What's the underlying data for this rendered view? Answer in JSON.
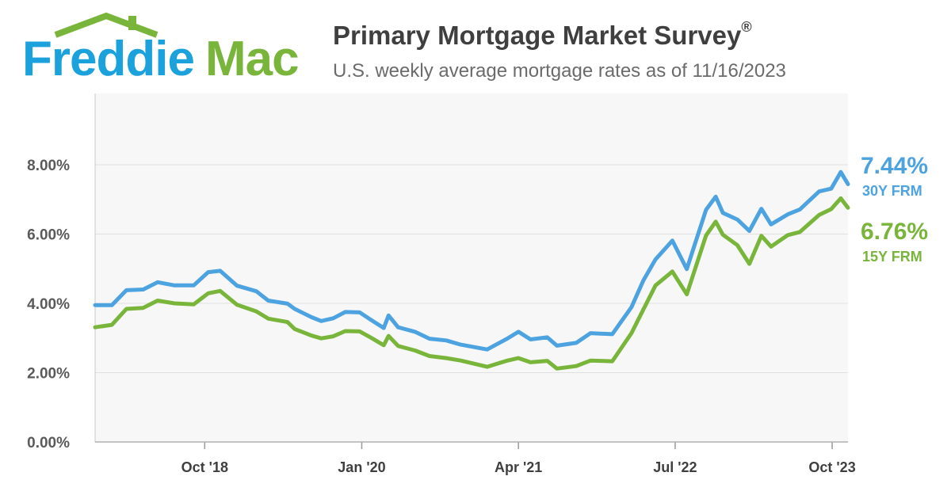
{
  "brand": {
    "part1": "Freddie",
    "part2": "Mac"
  },
  "header": {
    "title": "Primary Mortgage Market Survey",
    "title_mark": "®",
    "subtitle": "U.S. weekly average mortgage rates as of 11/16/2023"
  },
  "colors": {
    "frm30": "#4da3e0",
    "frm15": "#7ab53b",
    "brand_blue": "#1ba1dc",
    "brand_green": "#7ab53b"
  },
  "chart_data": {
    "type": "line",
    "ylim": [
      0,
      8
    ],
    "y_ticks": [
      {
        "value": 0,
        "label": "0.00%"
      },
      {
        "value": 2,
        "label": "2.00%"
      },
      {
        "value": 4,
        "label": "4.00%"
      },
      {
        "value": 6,
        "label": "6.00%"
      },
      {
        "value": 8,
        "label": "8.00%"
      }
    ],
    "x_range": [
      "2017-11-16",
      "2023-11-16"
    ],
    "x_ticks": [
      {
        "date": "2018-10-01",
        "label": "Oct '18"
      },
      {
        "date": "2020-01-01",
        "label": "Jan '20"
      },
      {
        "date": "2021-04-01",
        "label": "Apr '21"
      },
      {
        "date": "2022-07-01",
        "label": "Jul '22"
      },
      {
        "date": "2023-10-01",
        "label": "Oct '23"
      }
    ],
    "series": [
      {
        "name": "30Y FRM",
        "last_value": "7.44%",
        "points": [
          [
            "2017-11-16",
            3.95
          ],
          [
            "2018-01-04",
            3.95
          ],
          [
            "2018-02-15",
            4.38
          ],
          [
            "2018-04-05",
            4.4
          ],
          [
            "2018-05-17",
            4.61
          ],
          [
            "2018-07-05",
            4.52
          ],
          [
            "2018-08-30",
            4.52
          ],
          [
            "2018-10-11",
            4.9
          ],
          [
            "2018-11-15",
            4.94
          ],
          [
            "2019-01-03",
            4.51
          ],
          [
            "2019-02-28",
            4.35
          ],
          [
            "2019-04-04",
            4.08
          ],
          [
            "2019-05-30",
            3.99
          ],
          [
            "2019-06-20",
            3.84
          ],
          [
            "2019-08-08",
            3.6
          ],
          [
            "2019-09-05",
            3.49
          ],
          [
            "2019-10-10",
            3.57
          ],
          [
            "2019-11-14",
            3.75
          ],
          [
            "2019-12-26",
            3.74
          ],
          [
            "2020-01-30",
            3.51
          ],
          [
            "2020-03-05",
            3.29
          ],
          [
            "2020-03-19",
            3.65
          ],
          [
            "2020-04-16",
            3.31
          ],
          [
            "2020-06-04",
            3.18
          ],
          [
            "2020-07-16",
            2.98
          ],
          [
            "2020-09-03",
            2.93
          ],
          [
            "2020-10-15",
            2.81
          ],
          [
            "2020-12-31",
            2.67
          ],
          [
            "2021-02-25",
            2.97
          ],
          [
            "2021-04-01",
            3.18
          ],
          [
            "2021-05-06",
            2.96
          ],
          [
            "2021-06-24",
            3.02
          ],
          [
            "2021-07-22",
            2.78
          ],
          [
            "2021-09-16",
            2.86
          ],
          [
            "2021-10-28",
            3.14
          ],
          [
            "2021-12-30",
            3.11
          ],
          [
            "2022-02-24",
            3.89
          ],
          [
            "2022-03-31",
            4.67
          ],
          [
            "2022-05-05",
            5.27
          ],
          [
            "2022-06-23",
            5.81
          ],
          [
            "2022-08-04",
            4.99
          ],
          [
            "2022-09-29",
            6.7
          ],
          [
            "2022-10-27",
            7.08
          ],
          [
            "2022-11-17",
            6.61
          ],
          [
            "2022-12-29",
            6.42
          ],
          [
            "2023-02-02",
            6.09
          ],
          [
            "2023-03-09",
            6.73
          ],
          [
            "2023-04-06",
            6.28
          ],
          [
            "2023-05-25",
            6.57
          ],
          [
            "2023-06-29",
            6.71
          ],
          [
            "2023-08-24",
            7.23
          ],
          [
            "2023-09-28",
            7.31
          ],
          [
            "2023-10-26",
            7.79
          ],
          [
            "2023-11-16",
            7.44
          ]
        ]
      },
      {
        "name": "15Y FRM",
        "last_value": "6.76%",
        "points": [
          [
            "2017-11-16",
            3.31
          ],
          [
            "2018-01-04",
            3.38
          ],
          [
            "2018-02-15",
            3.84
          ],
          [
            "2018-04-05",
            3.87
          ],
          [
            "2018-05-17",
            4.08
          ],
          [
            "2018-07-05",
            4.0
          ],
          [
            "2018-08-30",
            3.97
          ],
          [
            "2018-10-11",
            4.29
          ],
          [
            "2018-11-15",
            4.36
          ],
          [
            "2019-01-03",
            3.96
          ],
          [
            "2019-02-28",
            3.77
          ],
          [
            "2019-04-04",
            3.56
          ],
          [
            "2019-05-30",
            3.46
          ],
          [
            "2019-06-20",
            3.26
          ],
          [
            "2019-08-08",
            3.07
          ],
          [
            "2019-09-05",
            2.99
          ],
          [
            "2019-10-10",
            3.05
          ],
          [
            "2019-11-14",
            3.2
          ],
          [
            "2019-12-26",
            3.19
          ],
          [
            "2020-01-30",
            3.0
          ],
          [
            "2020-03-05",
            2.79
          ],
          [
            "2020-03-19",
            3.06
          ],
          [
            "2020-04-16",
            2.77
          ],
          [
            "2020-06-04",
            2.64
          ],
          [
            "2020-07-16",
            2.48
          ],
          [
            "2020-09-03",
            2.42
          ],
          [
            "2020-10-15",
            2.35
          ],
          [
            "2020-12-31",
            2.17
          ],
          [
            "2021-02-25",
            2.34
          ],
          [
            "2021-04-01",
            2.42
          ],
          [
            "2021-05-06",
            2.3
          ],
          [
            "2021-06-24",
            2.34
          ],
          [
            "2021-07-22",
            2.12
          ],
          [
            "2021-09-16",
            2.19
          ],
          [
            "2021-10-28",
            2.35
          ],
          [
            "2021-12-30",
            2.33
          ],
          [
            "2022-02-24",
            3.14
          ],
          [
            "2022-03-31",
            3.83
          ],
          [
            "2022-05-05",
            4.52
          ],
          [
            "2022-06-23",
            4.92
          ],
          [
            "2022-08-04",
            4.26
          ],
          [
            "2022-09-29",
            5.96
          ],
          [
            "2022-10-27",
            6.36
          ],
          [
            "2022-11-17",
            5.98
          ],
          [
            "2022-12-29",
            5.68
          ],
          [
            "2023-02-02",
            5.14
          ],
          [
            "2023-03-09",
            5.95
          ],
          [
            "2023-04-06",
            5.64
          ],
          [
            "2023-05-25",
            5.97
          ],
          [
            "2023-06-29",
            6.06
          ],
          [
            "2023-08-24",
            6.55
          ],
          [
            "2023-09-28",
            6.72
          ],
          [
            "2023-10-26",
            7.03
          ],
          [
            "2023-11-16",
            6.76
          ]
        ]
      }
    ]
  }
}
